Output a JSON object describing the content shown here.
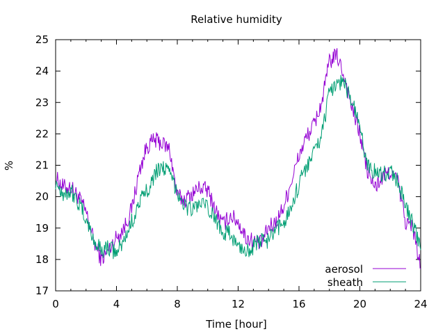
{
  "chart_data": {
    "type": "line",
    "title": "Relative humidity",
    "xlabel": "Time [hour]",
    "ylabel": "%",
    "xlim": [
      0,
      24
    ],
    "ylim": [
      17,
      25
    ],
    "xticks": [
      0,
      4,
      8,
      12,
      16,
      20,
      24
    ],
    "yticks": [
      17,
      18,
      19,
      20,
      21,
      22,
      23,
      24,
      25
    ],
    "grid": false,
    "legend_position": "bottom-right",
    "series": [
      {
        "name": "aerosol",
        "color": "#9400d3",
        "x": [
          0,
          0.5,
          1,
          1.5,
          2,
          2.5,
          3,
          3.5,
          4,
          4.5,
          5,
          5.5,
          6,
          6.5,
          7,
          7.5,
          8,
          8.5,
          9,
          9.5,
          10,
          10.5,
          11,
          11.5,
          12,
          12.5,
          13,
          13.5,
          14,
          14.5,
          15,
          15.5,
          16,
          16.5,
          17,
          17.5,
          18,
          18.5,
          19,
          19.5,
          20,
          20.5,
          21,
          21.5,
          22,
          22.5,
          23,
          23.5,
          24
        ],
        "y": [
          20.6,
          20.3,
          20.3,
          20.0,
          19.5,
          18.6,
          18.0,
          18.3,
          18.7,
          19.0,
          19.6,
          20.8,
          21.6,
          21.8,
          21.7,
          21.5,
          20.0,
          19.9,
          20.1,
          20.3,
          20.2,
          19.6,
          19.1,
          19.4,
          19.2,
          18.7,
          18.6,
          18.5,
          19.0,
          19.2,
          19.7,
          20.5,
          21.3,
          21.9,
          22.3,
          23.0,
          24.3,
          24.5,
          23.8,
          22.8,
          22.0,
          20.8,
          20.3,
          20.6,
          20.8,
          20.5,
          19.2,
          19.0,
          17.7
        ]
      },
      {
        "name": "sheath",
        "color": "#009e73",
        "x": [
          0,
          0.5,
          1,
          1.5,
          2,
          2.5,
          3,
          3.5,
          4,
          4.5,
          5,
          5.5,
          6,
          6.5,
          7,
          7.5,
          8,
          8.5,
          9,
          9.5,
          10,
          10.5,
          11,
          11.5,
          12,
          12.5,
          13,
          13.5,
          14,
          14.5,
          15,
          15.5,
          16,
          16.5,
          17,
          17.5,
          18,
          18.5,
          19,
          19.5,
          20,
          20.5,
          21,
          21.5,
          22,
          22.5,
          23,
          23.5,
          24
        ],
        "y": [
          20.5,
          20.1,
          20.2,
          19.8,
          19.3,
          18.6,
          18.3,
          18.4,
          18.2,
          18.6,
          19.2,
          19.8,
          20.2,
          20.7,
          21.0,
          20.7,
          20.2,
          19.7,
          19.6,
          19.8,
          19.6,
          19.3,
          18.9,
          18.8,
          18.4,
          18.3,
          18.4,
          18.6,
          18.6,
          18.9,
          19.2,
          19.7,
          20.4,
          21.0,
          21.4,
          22.0,
          23.3,
          23.7,
          23.6,
          23.0,
          22.2,
          21.0,
          20.8,
          20.7,
          20.8,
          20.5,
          19.7,
          19.1,
          18.3
        ]
      }
    ]
  }
}
